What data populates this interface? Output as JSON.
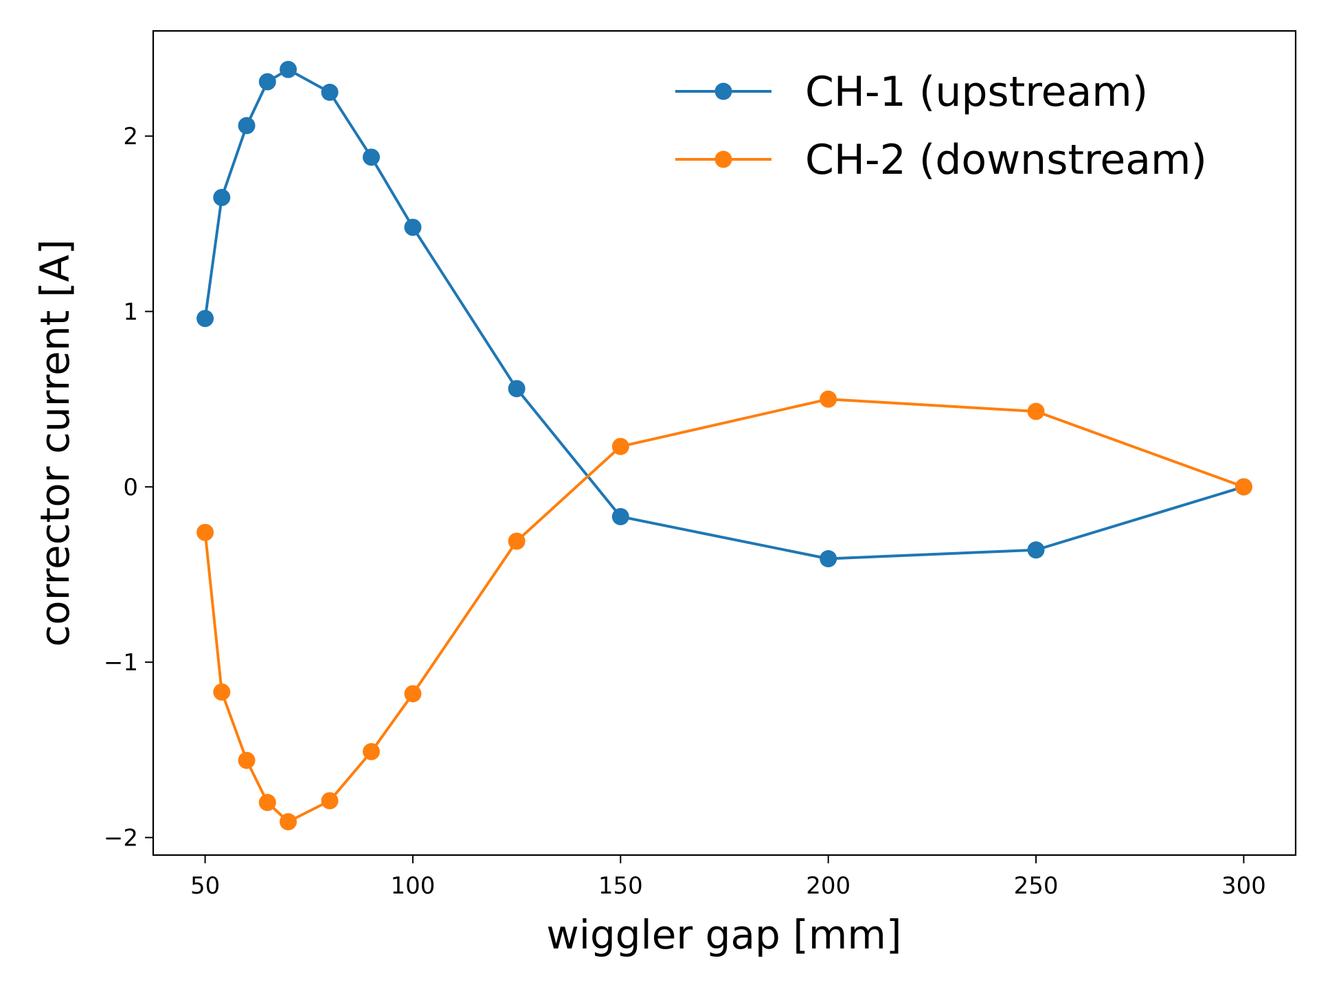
{
  "chart_data": {
    "type": "line",
    "xlabel": "wiggler gap [mm]",
    "ylabel": "corrector current [A]",
    "xlim": [
      37.5,
      312.5
    ],
    "ylim": [
      -2.1,
      2.6
    ],
    "xticks": [
      50,
      100,
      150,
      200,
      250,
      300
    ],
    "yticks": [
      -2,
      -1,
      0,
      1,
      2
    ],
    "xtick_labels": [
      "50",
      "100",
      "150",
      "200",
      "250",
      "300"
    ],
    "ytick_labels": [
      "−2",
      "−1",
      "0",
      "1",
      "2"
    ],
    "grid": false,
    "legend_position": "top-right",
    "x": [
      50,
      54,
      60,
      65,
      70,
      80,
      90,
      100,
      125,
      150,
      200,
      250,
      300
    ],
    "series": [
      {
        "name": "CH-1 (upstream)",
        "color": "#1f77b4",
        "values": [
          0.96,
          1.65,
          2.06,
          2.31,
          2.38,
          2.25,
          1.88,
          1.48,
          0.56,
          -0.17,
          -0.41,
          -0.36,
          0.0
        ]
      },
      {
        "name": "CH-2 (downstream)",
        "color": "#ff7f0e",
        "values": [
          -0.26,
          -1.17,
          -1.56,
          -1.8,
          -1.91,
          -1.79,
          -1.51,
          -1.18,
          -0.31,
          0.23,
          0.5,
          0.43,
          0.0
        ]
      }
    ]
  }
}
